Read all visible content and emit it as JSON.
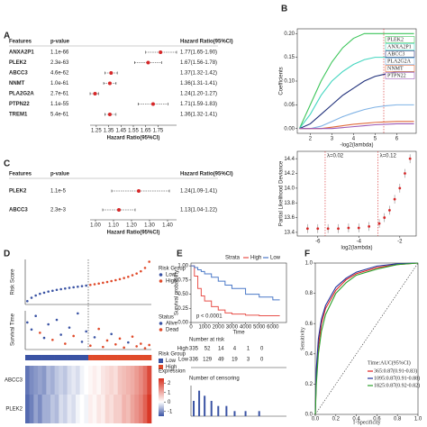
{
  "panel_labels": [
    "A",
    "B",
    "C",
    "D",
    "E",
    "F"
  ],
  "chart_data": [
    {
      "type": "forest",
      "headers": [
        "Features",
        "p-value",
        "Hazard Ratio(95%CI)"
      ],
      "categories": [
        "ANXA2P1",
        "PLEK2",
        "ABCC3",
        "NNMT",
        "PLA2G2A",
        "PTPN22",
        "TREM1"
      ],
      "p_values": [
        "1.1e-66",
        "2.3e-63",
        "4.6e-62",
        "1.0e-61",
        "2.7e-61",
        "1.1e-55",
        "5.4e-61"
      ],
      "values": [
        1.77,
        1.67,
        1.37,
        1.36,
        1.24,
        1.71,
        1.36
      ],
      "lower": [
        1.65,
        1.56,
        1.32,
        1.31,
        1.2,
        1.59,
        1.32
      ],
      "upper": [
        1.9,
        1.78,
        1.42,
        1.41,
        1.27,
        1.83,
        1.41
      ],
      "value_labels": [
        "1.77(1.65-1.90)",
        "1.67(1.56-1.78)",
        "1.37(1.32-1.42)",
        "1.36(1.31-1.41)",
        "1.24(1.20-1.27)",
        "1.71(1.59-1.83)",
        "1.36(1.32-1.41)"
      ],
      "xlim": [
        1.2,
        1.9
      ],
      "xticks": [
        1.25,
        1.35,
        1.45,
        1.55,
        1.65,
        1.75
      ],
      "xlabel": "Hazard Ratio(95%CI)",
      "color": "#d62728"
    },
    {
      "type": "line",
      "ylabel": "Coefficients",
      "xlabel": "-log2(lambda)",
      "x": [
        1.5,
        2,
        2.5,
        3,
        3.5,
        4,
        4.5,
        5,
        5.5,
        6,
        6.5,
        6.8
      ],
      "series": [
        {
          "name": "PLEK2",
          "color": "#3cc55a",
          "values": [
            0,
            0.05,
            0.1,
            0.14,
            0.17,
            0.19,
            0.2,
            0.2,
            0.2,
            0.2,
            0.2,
            0.2
          ]
        },
        {
          "name": "ANXA2P1",
          "color": "#44d6c0",
          "values": [
            0,
            0.03,
            0.07,
            0.1,
            0.12,
            0.135,
            0.145,
            0.15,
            0.15,
            0.15,
            0.15,
            0.15
          ]
        },
        {
          "name": "ABCC3",
          "color": "#1f2f7a",
          "values": [
            0,
            0.01,
            0.03,
            0.05,
            0.07,
            0.085,
            0.1,
            0.11,
            0.115,
            0.12,
            0.12,
            0.12
          ]
        },
        {
          "name": "PLA2G2A",
          "color": "#7fb2e5",
          "values": [
            0,
            0,
            0.005,
            0.015,
            0.025,
            0.033,
            0.04,
            0.045,
            0.048,
            0.05,
            0.05,
            0.05
          ]
        },
        {
          "name": "NNMT",
          "color": "#e06c3c",
          "values": [
            0,
            0,
            0,
            0.003,
            0.006,
            0.009,
            0.011,
            0.013,
            0.014,
            0.015,
            0.015,
            0.015
          ]
        },
        {
          "name": "PTPN22",
          "color": "#9b59b6",
          "values": [
            0,
            0,
            0,
            0,
            0.002,
            0.004,
            0.006,
            0.008,
            0.009,
            0.01,
            0.01,
            0.01
          ]
        }
      ],
      "vline": 5.4,
      "xlim": [
        1.4,
        6.9
      ],
      "ylim": [
        -0.01,
        0.21
      ],
      "xticks": [
        2,
        3,
        4,
        5,
        6
      ],
      "yticks": [
        {
          "value": 0,
          "label": "0.00"
        },
        0.05,
        {
          "value": 0.1,
          "label": "0.10"
        },
        0.15,
        {
          "value": 0.2,
          "label": "0.20"
        }
      ]
    },
    {
      "type": "errorbar",
      "ylabel": "Partial Likelihood Deviance",
      "xlabel": "log2(lambda)",
      "x": [
        -6.5,
        -6,
        -5.5,
        -5,
        -4.5,
        -4,
        -3.5,
        -3,
        -2.75,
        -2.5,
        -2.25,
        -2,
        -1.75,
        -1.5
      ],
      "values": [
        13.45,
        13.45,
        13.45,
        13.45,
        13.46,
        13.46,
        13.48,
        13.52,
        13.6,
        13.7,
        13.85,
        14.0,
        14.2,
        14.4
      ],
      "errors": [
        0.06,
        0.06,
        0.06,
        0.06,
        0.06,
        0.06,
        0.06,
        0.06,
        0.06,
        0.06,
        0.06,
        0.06,
        0.06,
        0.06
      ],
      "vlines": [
        -5.64,
        -3.06
      ],
      "vline_labels": [
        "λ=0.02",
        "λ=0.12"
      ],
      "color": "#d62728",
      "xlim": [
        -7,
        -1.2
      ],
      "ylim": [
        13.35,
        14.5
      ],
      "xticks": [
        -6,
        -4,
        -2
      ],
      "yticks": [
        13.4,
        13.6,
        13.8,
        {
          "value": 14,
          "label": "14.0"
        },
        14.2,
        14.4
      ]
    },
    {
      "type": "forest",
      "headers": [
        "Features",
        "p-value",
        "Hazard Ratio(95%CI)"
      ],
      "categories": [
        "PLEK2",
        "ABCC3"
      ],
      "p_values": [
        "1.1e-5",
        "2.3e-3"
      ],
      "values": [
        1.24,
        1.13
      ],
      "lower": [
        1.09,
        1.04
      ],
      "upper": [
        1.41,
        1.22
      ],
      "value_labels": [
        "1.24(1.09-1.41)",
        "1.13(1.04-1.22)"
      ],
      "xlim": [
        0.97,
        1.45
      ],
      "xticks": [
        {
          "value": 1,
          "label": "1.00"
        },
        {
          "value": 1.1,
          "label": "1.10"
        },
        {
          "value": 1.2,
          "label": "1.20"
        },
        {
          "value": 1.3,
          "label": "1.30"
        },
        {
          "value": 1.4,
          "label": "1.40"
        }
      ],
      "xlabel": "Hazard Ratio(95%CI)",
      "color": "#d62728"
    },
    {
      "type": "risk",
      "score_label": "Risk Score",
      "time_label": "Survival Time",
      "group_title": "Risk Group",
      "group_names": [
        "Low",
        "High"
      ],
      "group_colors": [
        "#3a53a4",
        "#e04a2a"
      ],
      "groups": [
        0,
        0,
        0,
        0,
        0,
        0,
        0,
        0,
        0,
        0,
        0,
        0,
        0,
        0,
        0,
        1,
        1,
        1,
        1,
        1,
        1,
        1,
        1,
        1,
        1,
        1,
        1,
        1,
        1,
        1
      ],
      "scores": [
        0.3,
        0.6,
        0.8,
        0.95,
        1.05,
        1.15,
        1.22,
        1.3,
        1.36,
        1.42,
        1.48,
        1.53,
        1.58,
        1.63,
        1.68,
        1.74,
        1.8,
        1.86,
        1.93,
        2.0,
        2.08,
        2.16,
        2.25,
        2.35,
        2.46,
        2.6,
        2.75,
        2.95,
        3.25,
        3.8
      ],
      "score_lim": [
        0,
        4
      ],
      "times": [
        4200,
        3100,
        5200,
        2600,
        1800,
        3900,
        1500,
        4600,
        2300,
        900,
        3400,
        2100,
        5600,
        1200,
        2800,
        600,
        1900,
        3200,
        400,
        1400,
        2400,
        800,
        1700,
        300,
        1100,
        2000,
        500,
        900,
        200,
        700
      ],
      "time_lim": [
        0,
        6000
      ],
      "status_title": "Status",
      "status_names": [
        "Alive",
        "Dead"
      ],
      "status_colors": [
        "#3a53a4",
        "#e04a2a"
      ],
      "status": [
        0,
        0,
        0,
        1,
        0,
        0,
        1,
        0,
        0,
        1,
        0,
        1,
        0,
        0,
        0,
        1,
        0,
        1,
        1,
        1,
        0,
        1,
        1,
        1,
        0,
        1,
        1,
        1,
        1,
        1
      ],
      "heat_rows": [
        "ABCC3",
        "PLEK2"
      ],
      "heat_values": [
        [
          -1.2,
          -1,
          -0.9,
          -0.8,
          -0.9,
          -0.6,
          -0.7,
          -0.5,
          -0.4,
          -0.5,
          -0.3,
          -0.2,
          -0.3,
          -0.1,
          0,
          0.1,
          0.2,
          0.1,
          0.3,
          0.4,
          0.5,
          0.4,
          0.7,
          0.8,
          0.9,
          1.0,
          1.2,
          1.4,
          1.7,
          2.2
        ],
        [
          -1.3,
          -1.1,
          -0.8,
          -1,
          -0.7,
          -0.7,
          -0.5,
          -0.6,
          -0.3,
          -0.4,
          -0.2,
          -0.3,
          -0.1,
          0,
          -0.1,
          0.2,
          0.1,
          0.3,
          0.2,
          0.5,
          0.4,
          0.6,
          0.6,
          0.9,
          0.8,
          1.1,
          1.3,
          1.5,
          1.9,
          2.4
        ]
      ],
      "clim": [
        -1.5,
        2.5
      ],
      "heat_title": "Expression",
      "cticks": [
        2,
        1,
        0,
        -1
      ]
    },
    {
      "type": "km",
      "legend_title": "Strata",
      "ylabel": "Survival probability",
      "xlabel": "Time",
      "annotation": "p < 0.0001",
      "x": [
        0,
        250,
        500,
        750,
        1000,
        1500,
        2000,
        2500,
        3000,
        4000,
        5000,
        6000
      ],
      "series": [
        {
          "name": "High",
          "color": "#e8504a",
          "values": [
            1,
            0.82,
            0.6,
            0.47,
            0.38,
            0.28,
            0.22,
            0.17,
            0.15,
            0.13,
            0.12,
            0.12
          ]
        },
        {
          "name": "Low",
          "color": "#4b79c8",
          "values": [
            1,
            0.97,
            0.93,
            0.9,
            0.86,
            0.8,
            0.73,
            0.66,
            0.6,
            0.5,
            0.45,
            0.4
          ]
        }
      ],
      "xlim": [
        0,
        7000
      ],
      "ylim": [
        0,
        1.05
      ],
      "xticks": [
        0,
        1000,
        2000,
        3000,
        4000,
        5000,
        6000
      ],
      "yticks": [
        {
          "value": 0,
          "label": "0.00"
        },
        0.25,
        {
          "value": 0.5,
          "label": "0.50"
        },
        0.75,
        {
          "value": 1,
          "label": "1.00"
        }
      ],
      "risk_title": "Number at risk",
      "risk_rows": [
        "High",
        "Low"
      ],
      "risk_times": [
        0,
        1000,
        2000,
        3000,
        4000,
        5000
      ],
      "risk_counts": [
        [
          335,
          52,
          14,
          4,
          1,
          0
        ],
        [
          336,
          129,
          49,
          19,
          3,
          0
        ]
      ],
      "censor_title": "Number of censoring",
      "censor_times": [
        200,
        600,
        1000,
        1500,
        2000,
        2600,
        3200,
        4000,
        5000
      ],
      "censor_counts": [
        3,
        5,
        4,
        3,
        2,
        2,
        1,
        1,
        1
      ],
      "censor_lim": [
        0,
        6
      ]
    },
    {
      "type": "roc",
      "ylabel": "Sensitivity",
      "xlabel": "1-Specificity",
      "legend_title": "Time:AUC(95%CI)",
      "x": [
        0,
        0.01,
        0.03,
        0.06,
        0.1,
        0.2,
        0.3,
        0.4,
        0.6,
        0.8,
        1
      ],
      "series": [
        {
          "name": "365:0.87(0.91-0.83)",
          "color": "#e02020",
          "values": [
            0,
            0.25,
            0.45,
            0.6,
            0.7,
            0.82,
            0.89,
            0.93,
            0.97,
            0.99,
            1
          ]
        },
        {
          "name": "1095:0.87(0.91-0.88)",
          "color": "#1f2f9a",
          "values": [
            0,
            0.3,
            0.5,
            0.63,
            0.72,
            0.84,
            0.9,
            0.94,
            0.98,
            0.995,
            1
          ]
        },
        {
          "name": "1825:0.87(0.92-0.82)",
          "color": "#2ca02c",
          "values": [
            0,
            0.2,
            0.4,
            0.55,
            0.66,
            0.8,
            0.87,
            0.92,
            0.96,
            0.99,
            1
          ]
        }
      ],
      "xlim": [
        0,
        1
      ],
      "ylim": [
        0,
        1
      ],
      "xticks": [
        {
          "value": 0,
          "label": "0.0"
        },
        0.2,
        0.4,
        0.6,
        0.8,
        {
          "value": 1,
          "label": "1.0"
        }
      ],
      "yticks": [
        {
          "value": 0,
          "label": "0.0"
        },
        0.2,
        0.4,
        0.6,
        0.8,
        {
          "value": 1,
          "label": "1.0"
        }
      ]
    }
  ]
}
